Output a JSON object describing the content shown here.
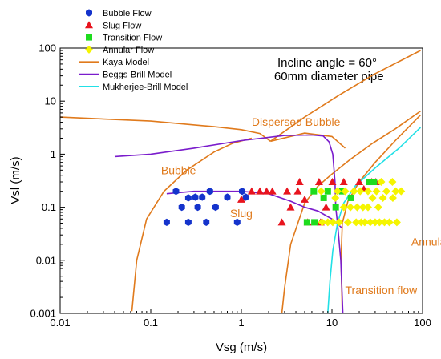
{
  "chart_data": {
    "type": "scatter",
    "xlabel": "Vsg (m/s)",
    "ylabel": "Vsl (m/s)",
    "xscale": "log",
    "yscale": "log",
    "xlim": [
      0.01,
      100
    ],
    "ylim": [
      0.001,
      100
    ],
    "x_ticks": [
      "0.01",
      "0.1",
      "1",
      "10",
      "100"
    ],
    "y_ticks": [
      "0.001",
      "0.01",
      "0.1",
      "1",
      "10",
      "100"
    ],
    "grid": false,
    "legend_position": "top-left",
    "annotations": [
      {
        "text": "Incline angle = 60°",
        "x": 2.5,
        "y": 45,
        "color": "#000000"
      },
      {
        "text": "60mm diameter pipe",
        "x": 2.3,
        "y": 25,
        "color": "#000000"
      }
    ],
    "region_labels": [
      {
        "text": "Dispersed Bubble",
        "x": 1.3,
        "y": 3.4,
        "color": "#e07a1c"
      },
      {
        "text": "Bubble",
        "x": 0.13,
        "y": 0.42,
        "color": "#e07a1c"
      },
      {
        "text": "Slug",
        "x": 0.75,
        "y": 0.065,
        "color": "#e07a1c"
      },
      {
        "text": "Annular",
        "x": 75,
        "y": 0.019,
        "color": "#e07a1c"
      },
      {
        "text": "Transition flow",
        "x": 14,
        "y": 0.0023,
        "color": "#e07a1c"
      }
    ],
    "series": [
      {
        "name": "Bubble Flow",
        "marker": "hexagon",
        "color": "#1433cc",
        "points": [
          [
            0.15,
            0.052
          ],
          [
            0.19,
            0.2
          ],
          [
            0.22,
            0.1
          ],
          [
            0.26,
            0.15
          ],
          [
            0.26,
            0.052
          ],
          [
            0.31,
            0.155
          ],
          [
            0.33,
            0.1
          ],
          [
            0.37,
            0.155
          ],
          [
            0.41,
            0.052
          ],
          [
            0.45,
            0.2
          ],
          [
            0.52,
            0.1
          ],
          [
            0.7,
            0.155
          ],
          [
            0.9,
            0.052
          ],
          [
            1.02,
            0.2
          ],
          [
            1.12,
            0.155
          ]
        ]
      },
      {
        "name": "Slug Flow",
        "marker": "triangle",
        "color": "#e8141e",
        "points": [
          [
            1.0,
            0.14
          ],
          [
            1.3,
            0.2
          ],
          [
            1.6,
            0.2
          ],
          [
            1.9,
            0.2
          ],
          [
            2.2,
            0.2
          ],
          [
            2.8,
            0.052
          ],
          [
            3.2,
            0.2
          ],
          [
            3.5,
            0.1
          ],
          [
            4.2,
            0.2
          ],
          [
            4.4,
            0.3
          ],
          [
            5.0,
            0.14
          ],
          [
            5.4,
            0.052
          ],
          [
            7.2,
            0.3
          ],
          [
            7.5,
            0.052
          ],
          [
            8.6,
            0.1
          ],
          [
            10.1,
            0.3
          ],
          [
            13.5,
            0.3
          ],
          [
            20.0,
            0.3
          ],
          [
            22.5,
            0.22
          ],
          [
            27.5,
            0.3
          ],
          [
            30.5,
            0.3
          ]
        ]
      },
      {
        "name": "Transition Flow",
        "marker": "square",
        "color": "#1edc1e",
        "points": [
          [
            5.3,
            0.052
          ],
          [
            6.4,
            0.052
          ],
          [
            6.3,
            0.2
          ],
          [
            8.1,
            0.15
          ],
          [
            9.0,
            0.2
          ],
          [
            11.0,
            0.1
          ],
          [
            13.0,
            0.2
          ],
          [
            16.2,
            0.15
          ],
          [
            26.0,
            0.3
          ],
          [
            29.0,
            0.3
          ]
        ]
      },
      {
        "name": "Annular Flow",
        "marker": "diamond",
        "color": "#f5f500",
        "points": [
          [
            7.6,
            0.2
          ],
          [
            7.8,
            0.052
          ],
          [
            9.0,
            0.052
          ],
          [
            10.2,
            0.052
          ],
          [
            10.9,
            0.15
          ],
          [
            11.5,
            0.2
          ],
          [
            12.0,
            0.052
          ],
          [
            13.5,
            0.1
          ],
          [
            14.0,
            0.2
          ],
          [
            15.0,
            0.052
          ],
          [
            16.0,
            0.1
          ],
          [
            17.5,
            0.2
          ],
          [
            18.5,
            0.052
          ],
          [
            19.0,
            0.1
          ],
          [
            20.5,
            0.2
          ],
          [
            21.0,
            0.052
          ],
          [
            22.0,
            0.1
          ],
          [
            23.0,
            0.052
          ],
          [
            25.0,
            0.2
          ],
          [
            25.0,
            0.1
          ],
          [
            26.5,
            0.052
          ],
          [
            28.0,
            0.15
          ],
          [
            30.0,
            0.052
          ],
          [
            31.0,
            0.2
          ],
          [
            32.5,
            0.1
          ],
          [
            33.5,
            0.052
          ],
          [
            35.0,
            0.3
          ],
          [
            36.5,
            0.15
          ],
          [
            38.0,
            0.052
          ],
          [
            40.0,
            0.2
          ],
          [
            43.0,
            0.052
          ],
          [
            46.5,
            0.3
          ],
          [
            47.0,
            0.15
          ],
          [
            50.5,
            0.2
          ],
          [
            52.0,
            0.052
          ],
          [
            58.0,
            0.2
          ]
        ]
      },
      {
        "name": "Kaya Model",
        "type": "line",
        "color": "#e07a1c",
        "segments": [
          [
            [
              0.01,
              5.0
            ],
            [
              0.1,
              4.2
            ],
            [
              0.5,
              3.3
            ],
            [
              1.0,
              2.9
            ],
            [
              1.6,
              2.45
            ],
            [
              2.1,
              1.75
            ]
          ],
          [
            [
              2.1,
              1.75
            ],
            [
              5.0,
              5.0
            ],
            [
              12.0,
              13.0
            ],
            [
              30.0,
              33.0
            ],
            [
              95.0,
              90.0
            ]
          ],
          [
            [
              2.1,
              1.75
            ],
            [
              5.0,
              2.5
            ],
            [
              10.0,
              2.15
            ],
            [
              14.0,
              1.3
            ]
          ],
          [
            [
              0.062,
              0.0011
            ],
            [
              0.07,
              0.01
            ],
            [
              0.09,
              0.06
            ],
            [
              0.14,
              0.2
            ],
            [
              0.25,
              0.5
            ],
            [
              0.5,
              1.1
            ],
            [
              0.8,
              1.6
            ],
            [
              1.3,
              2.0
            ]
          ],
          [
            [
              2.8,
              0.001
            ],
            [
              3.0,
              0.003
            ],
            [
              3.5,
              0.02
            ],
            [
              5.0,
              0.12
            ],
            [
              7.0,
              0.25
            ],
            [
              10.0,
              0.42
            ],
            [
              16.0,
              0.8
            ],
            [
              28.0,
              1.6
            ],
            [
              50.0,
              3.0
            ],
            [
              95.0,
              6.5
            ]
          ],
          [
            [
              13.0,
              0.001
            ],
            [
              12.6,
              0.01
            ],
            [
              13.0,
              0.05
            ],
            [
              15.0,
              0.13
            ],
            [
              20.0,
              0.3
            ],
            [
              30.0,
              0.7
            ],
            [
              50.0,
              1.8
            ],
            [
              95.0,
              5.5
            ]
          ]
        ]
      },
      {
        "name": "Beggs-Brill Model",
        "type": "line",
        "color": "#7a1ccc",
        "segments": [
          [
            [
              0.04,
              0.9
            ],
            [
              0.1,
              1.0
            ],
            [
              0.3,
              1.3
            ],
            [
              1.0,
              1.8
            ],
            [
              3.0,
              2.25
            ],
            [
              6.0,
              2.3
            ],
            [
              8.0,
              2.2
            ],
            [
              9.3,
              1.7
            ],
            [
              10.2,
              1.0
            ],
            [
              10.8,
              0.3
            ],
            [
              11.0,
              0.1
            ],
            [
              11.5,
              0.05
            ],
            [
              12.5,
              0.01
            ],
            [
              13.2,
              0.001
            ]
          ],
          [
            [
              0.15,
              0.18
            ],
            [
              0.3,
              0.2
            ],
            [
              0.7,
              0.2
            ],
            [
              1.0,
              0.2
            ],
            [
              2.0,
              0.18
            ],
            [
              3.5,
              0.13
            ],
            [
              5.0,
              0.1
            ],
            [
              7.0,
              0.085
            ],
            [
              10.0,
              0.06
            ],
            [
              13.0,
              0.04
            ]
          ]
        ]
      },
      {
        "name": "Mukherjee-Brill Model",
        "type": "line",
        "color": "#22e0e6",
        "segments": [
          [
            [
              9.0,
              0.001
            ],
            [
              9.5,
              0.004
            ],
            [
              10.2,
              0.015
            ],
            [
              11.5,
              0.05
            ],
            [
              13.5,
              0.12
            ],
            [
              18.0,
              0.25
            ],
            [
              30.0,
              0.55
            ],
            [
              55.0,
              1.3
            ],
            [
              95.0,
              3.2
            ]
          ]
        ]
      }
    ]
  }
}
